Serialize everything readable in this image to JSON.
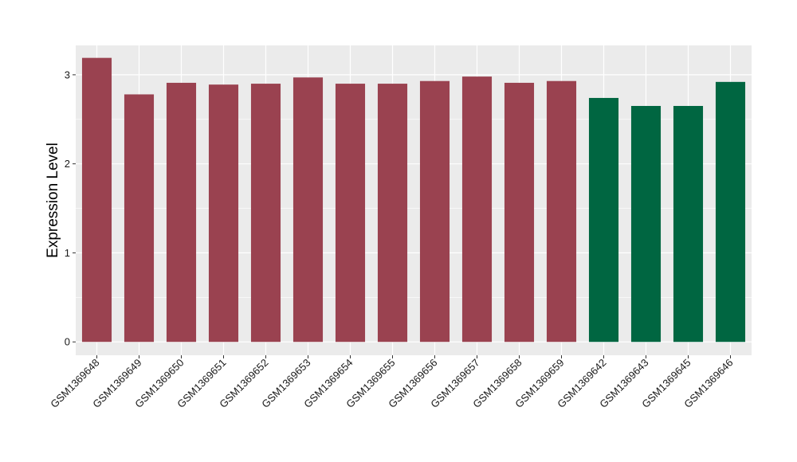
{
  "chart_data": {
    "type": "bar",
    "title": "",
    "xlabel": "",
    "ylabel": "Expression Level",
    "ylim": [
      -0.15,
      3.33
    ],
    "yticks": [
      0,
      1,
      2,
      3
    ],
    "grid": true,
    "legend": "none",
    "categories": [
      "GSM1369648",
      "GSM1369649",
      "GSM1369650",
      "GSM1369651",
      "GSM1369652",
      "GSM1369653",
      "GSM1369654",
      "GSM1369655",
      "GSM1369656",
      "GSM1369657",
      "GSM1369658",
      "GSM1369659",
      "GSM1369642",
      "GSM1369643",
      "GSM1369645",
      "GSM1369646"
    ],
    "values": [
      3.19,
      2.78,
      2.91,
      2.89,
      2.9,
      2.97,
      2.9,
      2.9,
      2.93,
      2.98,
      2.91,
      2.93,
      2.74,
      2.65,
      2.65,
      2.92
    ],
    "groups": [
      0,
      0,
      0,
      0,
      0,
      0,
      0,
      0,
      0,
      0,
      0,
      0,
      1,
      1,
      1,
      1
    ],
    "colors": {
      "group_0": "#9a4250",
      "group_1": "#006641",
      "panel": "#ebebeb",
      "grid": "#ffffff"
    }
  }
}
